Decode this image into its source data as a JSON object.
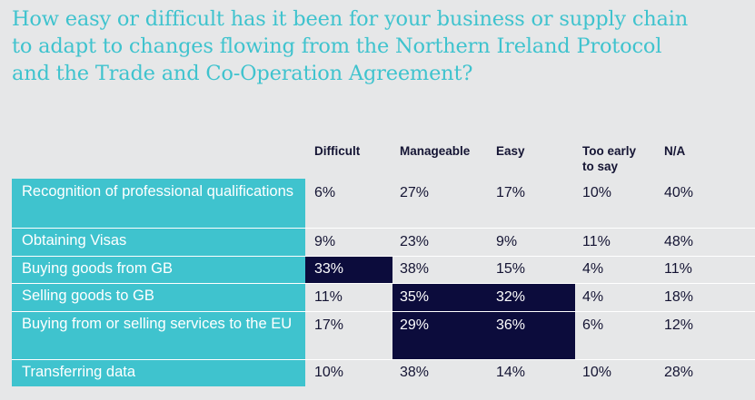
{
  "title": {
    "line1": "How easy or difficult has it been for your business or supply chain",
    "line2": "to adapt to changes flowing from the Northern Ireland Protocol",
    "line3": "and the Trade and Co-Operation Agreement?"
  },
  "columns": {
    "difficult": "Difficult",
    "manageable": "Manageable",
    "easy": "Easy",
    "too_early_1": "Too early",
    "too_early_2": "to say",
    "na": "N/A"
  },
  "colors": {
    "accent": "#3fc3ce",
    "highlight": "#0c0c3c",
    "background": "#e6e7e8",
    "text": "#141433"
  },
  "rows": [
    {
      "label": "Recognition of professional qualifications",
      "difficult": "6%",
      "manageable": "27%",
      "easy": "17%",
      "too_early": "10%",
      "na": "40%"
    },
    {
      "label": "Obtaining Visas",
      "difficult": "9%",
      "manageable": "23%",
      "easy": "9%",
      "too_early": "11%",
      "na": "48%"
    },
    {
      "label": "Buying goods from GB",
      "difficult": "33%",
      "manageable": "38%",
      "easy": "15%",
      "too_early": "4%",
      "na": "11%"
    },
    {
      "label": "Selling goods to GB",
      "difficult": "11%",
      "manageable": "35%",
      "easy": "32%",
      "too_early": "4%",
      "na": "18%"
    },
    {
      "label": "Buying from or selling services to the EU",
      "difficult": "17%",
      "manageable": "29%",
      "easy": "36%",
      "too_early": "6%",
      "na": "12%"
    },
    {
      "label": "Transferring data",
      "difficult": "10%",
      "manageable": "38%",
      "easy": "14%",
      "too_early": "10%",
      "na": "28%"
    }
  ]
}
